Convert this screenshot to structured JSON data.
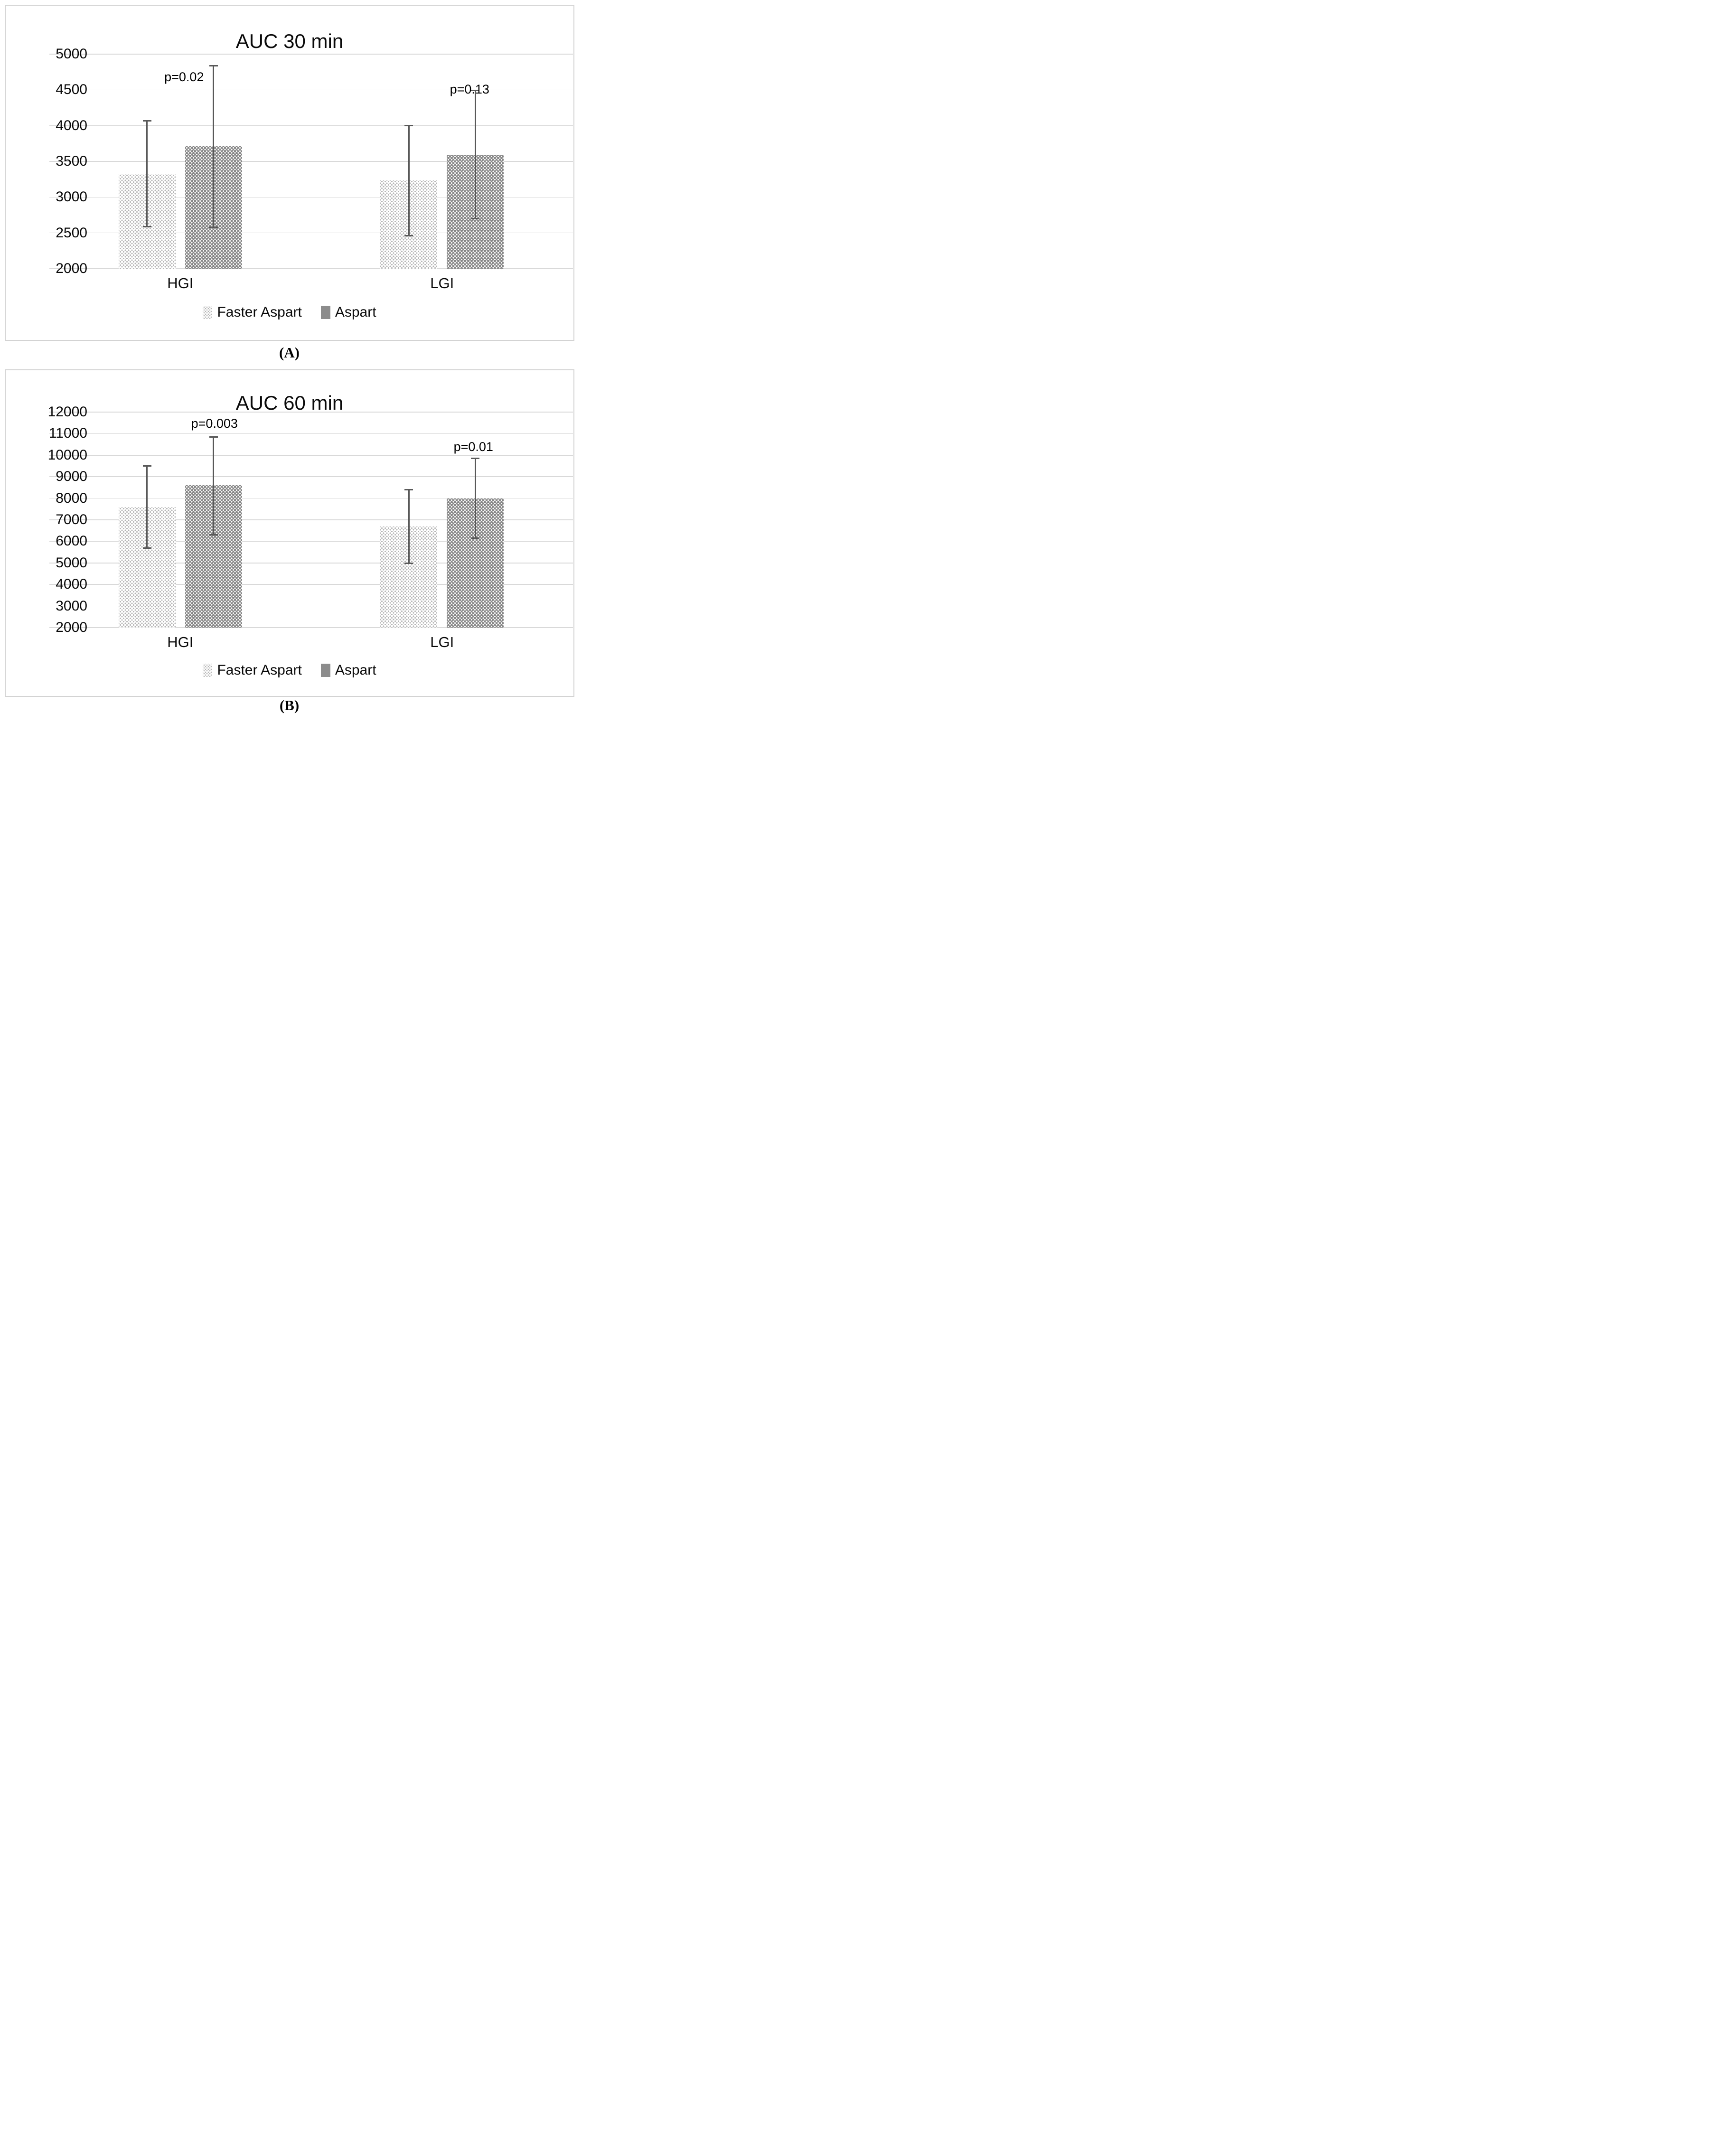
{
  "colors": {
    "background": "#ffffff",
    "panel_border": "#d3d3d3",
    "gridline": "#d9d9d9",
    "error_bar": "#595959",
    "faster_aspart_fill": "#ffffff",
    "faster_aspart_dot": "#b4b4b4",
    "aspart_fill": "#868686",
    "aspart_dot": "#ffffff",
    "legend_aspart_swatch": "#8c8c8c",
    "text": "#000000"
  },
  "panel_captions": {
    "a": "(A)",
    "b": "(B)"
  },
  "chart_data": [
    {
      "id": "auc30",
      "type": "bar",
      "title": "AUC 30 min",
      "categories": [
        "HGI",
        "LGI"
      ],
      "series": [
        {
          "name": "Faster Aspart",
          "values": [
            3330,
            3240
          ],
          "error_low": [
            2590,
            2460
          ],
          "error_high": [
            4070,
            4000
          ]
        },
        {
          "name": "Aspart",
          "values": [
            3710,
            3590
          ],
          "error_low": [
            2580,
            2700
          ],
          "error_high": [
            4840,
            4490
          ]
        }
      ],
      "p_values": [
        {
          "label": "p=0.02",
          "category": "HGI",
          "value_y": 4680,
          "x_offset": 8
        },
        {
          "label": "p=0.13",
          "category": "LGI",
          "value_y": 4510,
          "x_offset": 58
        }
      ],
      "ylim": [
        2000,
        5000
      ],
      "yticks": [
        5000,
        4500,
        4000,
        3500,
        3000,
        2500,
        2000
      ],
      "grid": true,
      "legend_position": "bottom",
      "panel_label": "(A)"
    },
    {
      "id": "auc60",
      "type": "bar",
      "title": "AUC 60 min",
      "categories": [
        "HGI",
        "LGI"
      ],
      "series": [
        {
          "name": "Faster Aspart",
          "values": [
            7600,
            6700
          ],
          "error_low": [
            5700,
            4980
          ],
          "error_high": [
            9500,
            8400
          ]
        },
        {
          "name": "Aspart",
          "values": [
            8600,
            8000
          ],
          "error_low": [
            6300,
            6150
          ],
          "error_high": [
            10850,
            9850
          ]
        }
      ],
      "p_values": [
        {
          "label": "p=0.003",
          "category": "HGI",
          "value_y": 11470,
          "x_offset": 72
        },
        {
          "label": "p=0.01",
          "category": "LGI",
          "value_y": 10390,
          "x_offset": 66
        }
      ],
      "ylim": [
        2000,
        12000
      ],
      "yticks": [
        12000,
        11000,
        10000,
        9000,
        8000,
        7000,
        6000,
        5000,
        4000,
        3000,
        2000
      ],
      "grid": true,
      "legend_position": "bottom",
      "panel_label": "(B)"
    }
  ]
}
